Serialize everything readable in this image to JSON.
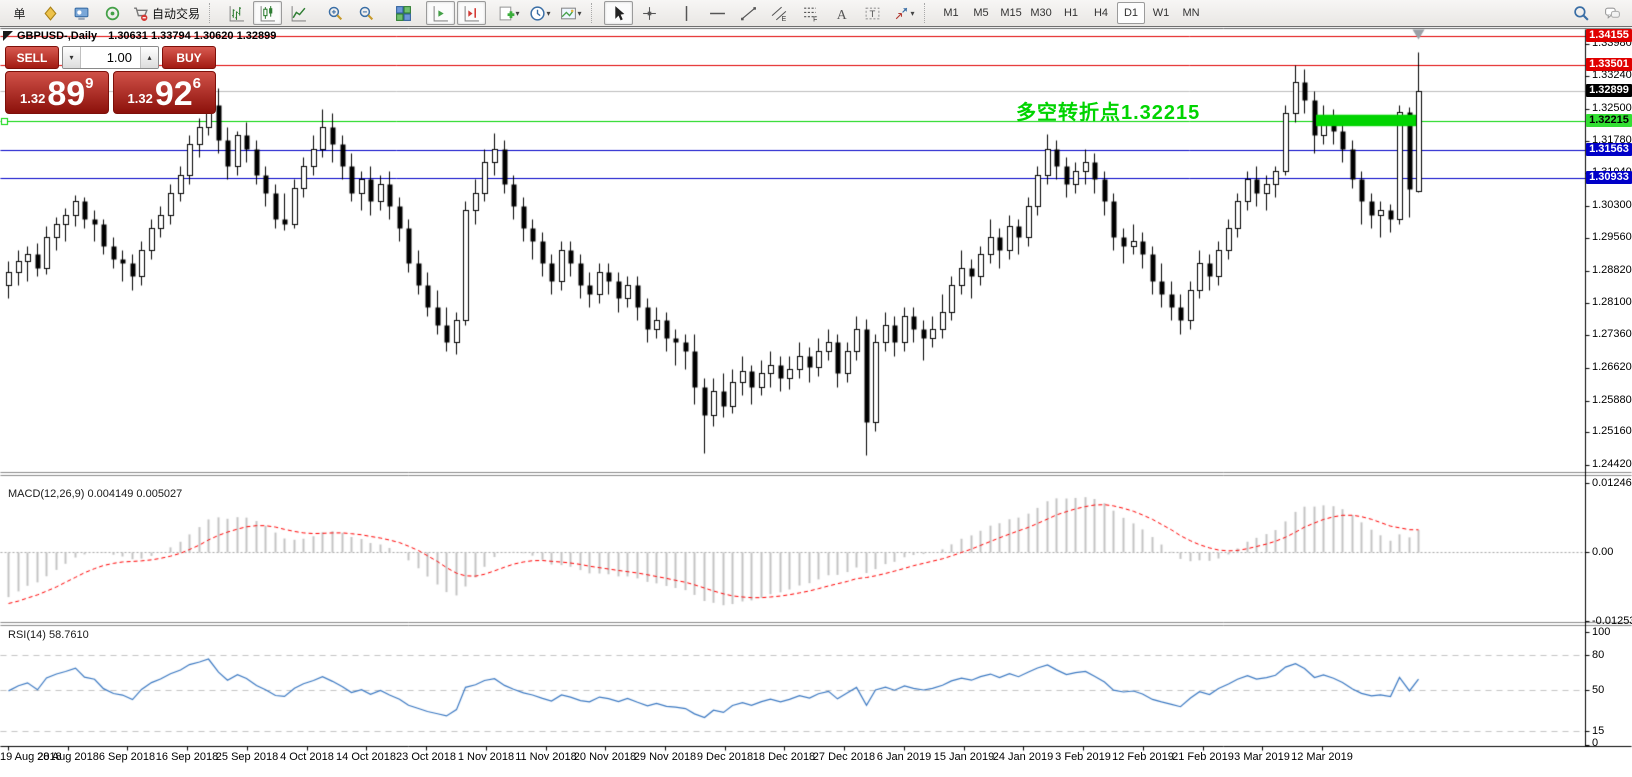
{
  "toolbar": {
    "buttons_left": [
      {
        "name": "new-order",
        "type": "text",
        "glyph": "单"
      },
      {
        "name": "market-watch",
        "type": "icon"
      },
      {
        "name": "metaeditor",
        "type": "icon"
      },
      {
        "name": "signals",
        "type": "icon"
      },
      {
        "name": "autotrading",
        "type": "icon",
        "label": "自动交易"
      },
      {
        "type": "sep"
      },
      {
        "name": "chart-bars",
        "type": "icon"
      },
      {
        "name": "chart-candles",
        "type": "icon",
        "active": true
      },
      {
        "name": "chart-line",
        "type": "icon"
      },
      {
        "type": "gap"
      },
      {
        "name": "zoom-in",
        "type": "icon"
      },
      {
        "name": "zoom-out",
        "type": "icon"
      },
      {
        "type": "gap"
      },
      {
        "name": "tile-windows",
        "type": "icon"
      },
      {
        "type": "gap"
      },
      {
        "name": "auto-scroll",
        "type": "icon",
        "active": true
      },
      {
        "name": "chart-shift",
        "type": "icon",
        "active": true
      },
      {
        "type": "gap"
      },
      {
        "name": "indicators",
        "type": "icon",
        "caret": true
      },
      {
        "name": "periods",
        "type": "icon",
        "caret": true
      },
      {
        "name": "templates",
        "type": "icon",
        "caret": true
      },
      {
        "type": "sep"
      },
      {
        "name": "cursor",
        "type": "icon",
        "active": true
      },
      {
        "name": "crosshair",
        "type": "icon"
      },
      {
        "type": "gap"
      },
      {
        "name": "vline",
        "type": "icon"
      },
      {
        "name": "hline",
        "type": "icon"
      },
      {
        "name": "trendline",
        "type": "icon"
      },
      {
        "name": "channel",
        "type": "icon"
      },
      {
        "name": "fibonacci",
        "type": "icon"
      },
      {
        "name": "text",
        "type": "icon"
      },
      {
        "name": "label",
        "type": "icon"
      },
      {
        "name": "arrows",
        "type": "icon",
        "caret": true
      },
      {
        "type": "sep"
      }
    ],
    "timeframes": [
      {
        "label": "M1"
      },
      {
        "label": "M5"
      },
      {
        "label": "M15"
      },
      {
        "label": "M30"
      },
      {
        "label": "H1"
      },
      {
        "label": "H4"
      },
      {
        "label": "D1",
        "active": true
      },
      {
        "label": "W1"
      },
      {
        "label": "MN"
      }
    ],
    "buttons_right": [
      {
        "name": "search",
        "type": "icon"
      },
      {
        "name": "chat",
        "type": "icon"
      }
    ]
  },
  "chart_header": {
    "title": "GBPUSD-,Daily",
    "ohlc": "1.30631 1.33794 1.30620 1.32899"
  },
  "one_click": {
    "sell_label": "SELL",
    "buy_label": "BUY",
    "volume": "1.00",
    "sell": {
      "prefix": "1.32",
      "big": "89",
      "sup": "9"
    },
    "buy": {
      "prefix": "1.32",
      "big": "92",
      "sup": "6"
    }
  },
  "annotation": {
    "text": "多空转折点1.32215",
    "color": "#00d400"
  },
  "indicators": {
    "macd_label": "MACD(12,26,9) 0.004149 0.005027",
    "rsi_label": "RSI(14) 58.7610"
  },
  "chart_data": {
    "type": "candlestick",
    "symbol": "GBPUSD-",
    "period": "Daily",
    "title": "GBPUSD-,Daily 1.30631 1.33794 1.30620 1.32899",
    "colors": {
      "bull": "#ffffff",
      "bear": "#000000",
      "outline": "#000000",
      "red_level": "#e00000",
      "green_level": "#00d400",
      "blue_level": "#0000c8",
      "current_price_line": "#bdbdbd",
      "macd_hist": "#c4c4c4",
      "macd_signal": "#ff0000",
      "rsi_line": "#3a78c2"
    },
    "y_axis": {
      "min": 1.2442,
      "max": 1.34155,
      "ticks": [
        1.3398,
        1.3324,
        1.325,
        1.3178,
        1.3104,
        1.303,
        1.2956,
        1.2882,
        1.281,
        1.2736,
        1.2662,
        1.2588,
        1.2516,
        1.2442
      ]
    },
    "levels": [
      {
        "price": 1.34155,
        "label": "1.34155",
        "line_color": "#e00000",
        "badge_bg": "#e00000",
        "badge_fg": "#ffffff"
      },
      {
        "price": 1.33501,
        "label": "1.33501",
        "line_color": "#e00000",
        "badge_bg": "#e00000",
        "badge_fg": "#ffffff"
      },
      {
        "price": 1.32899,
        "label": "1.32899",
        "line_color": "#bdbdbd",
        "badge_bg": "#000000",
        "badge_fg": "#ffffff",
        "is_current": true
      },
      {
        "price": 1.32215,
        "label": "1.32215",
        "line_color": "#00d400",
        "badge_bg": "#33df33",
        "badge_fg": "#000000",
        "has_left_handle": true
      },
      {
        "price": 1.31563,
        "label": "1.31563",
        "line_color": "#0000c8",
        "badge_bg": "#0000c8",
        "badge_fg": "#ffffff"
      },
      {
        "price": 1.30933,
        "label": "1.30933",
        "line_color": "#0000c8",
        "badge_bg": "#0000c8",
        "badge_fg": "#ffffff"
      }
    ],
    "rectangle": {
      "x1_index": 137.2,
      "x2_index": 147.7,
      "top": 1.3238,
      "bottom": 1.3212,
      "color": "#00d400"
    },
    "marker": {
      "index": 148,
      "type": "down-triangle",
      "color": "#9aa0a6"
    },
    "date_labels": [
      "19 Aug 2018",
      "28 Aug 2018",
      "6 Sep 2018",
      "16 Sep 2018",
      "25 Sep 2018",
      "4 Oct 2018",
      "14 Oct 2018",
      "23 Oct 2018",
      "1 Nov 2018",
      "11 Nov 2018",
      "20 Nov 2018",
      "29 Nov 2018",
      "9 Dec 2018",
      "18 Dec 2018",
      "27 Dec 2018",
      "6 Jan 2019",
      "15 Jan 2019",
      "24 Jan 2019",
      "3 Feb 2019",
      "12 Feb 2019",
      "21 Feb 2019",
      "3 Mar 2019",
      "12 Mar 2019"
    ],
    "macd": {
      "params": "12,26,9",
      "values_text": [
        "0.004149",
        "0.005027"
      ],
      "ticks": [
        {
          "v": 0.012465,
          "label": "0.012465"
        },
        {
          "v": 0,
          "label": "0.00"
        },
        {
          "v": -0.012532,
          "label": "-0.012532"
        }
      ]
    },
    "rsi": {
      "params": "14",
      "value_text": "58.7610",
      "ticks": [
        {
          "v": 100,
          "label": "100"
        },
        {
          "v": 80,
          "label": "80"
        },
        {
          "v": 50,
          "label": "50"
        },
        {
          "v": 15,
          "label": "15"
        },
        {
          "v": 0,
          "label": "0"
        }
      ],
      "dashed_levels": [
        80,
        50,
        15
      ]
    },
    "candles": [
      [
        1.285,
        1.2905,
        1.282,
        1.288
      ],
      [
        1.288,
        1.293,
        1.285,
        1.2905
      ],
      [
        1.2905,
        1.294,
        1.286,
        1.292
      ],
      [
        1.292,
        1.2945,
        1.287,
        1.289
      ],
      [
        1.289,
        1.2985,
        1.2875,
        1.296
      ],
      [
        1.296,
        1.3005,
        1.293,
        1.299
      ],
      [
        1.299,
        1.3025,
        1.295,
        1.301
      ],
      [
        1.301,
        1.3055,
        1.2985,
        1.304
      ],
      [
        1.304,
        1.305,
        1.298,
        1.3
      ],
      [
        1.3,
        1.302,
        1.295,
        1.299
      ],
      [
        1.299,
        1.3,
        1.292,
        1.294
      ],
      [
        1.294,
        1.296,
        1.289,
        1.291
      ],
      [
        1.291,
        1.293,
        1.286,
        1.29
      ],
      [
        1.29,
        1.292,
        1.284,
        1.287
      ],
      [
        1.287,
        1.295,
        1.285,
        1.293
      ],
      [
        1.293,
        1.3,
        1.291,
        1.298
      ],
      [
        1.298,
        1.303,
        1.296,
        1.301
      ],
      [
        1.301,
        1.308,
        1.299,
        1.306
      ],
      [
        1.306,
        1.312,
        1.304,
        1.31
      ],
      [
        1.31,
        1.319,
        1.308,
        1.317
      ],
      [
        1.317,
        1.323,
        1.314,
        1.321
      ],
      [
        1.321,
        1.33,
        1.319,
        1.326
      ],
      [
        1.326,
        1.3298,
        1.315,
        1.318
      ],
      [
        1.318,
        1.321,
        1.309,
        1.312
      ],
      [
        1.312,
        1.32,
        1.31,
        1.319
      ],
      [
        1.319,
        1.322,
        1.313,
        1.316
      ],
      [
        1.316,
        1.318,
        1.308,
        1.31
      ],
      [
        1.31,
        1.312,
        1.303,
        1.306
      ],
      [
        1.306,
        1.308,
        1.298,
        1.3
      ],
      [
        1.3,
        1.306,
        1.2975,
        1.299
      ],
      [
        1.299,
        1.309,
        1.298,
        1.307
      ],
      [
        1.307,
        1.314,
        1.305,
        1.312
      ],
      [
        1.312,
        1.319,
        1.31,
        1.316
      ],
      [
        1.316,
        1.325,
        1.314,
        1.321
      ],
      [
        1.321,
        1.324,
        1.313,
        1.317
      ],
      [
        1.317,
        1.319,
        1.309,
        1.312
      ],
      [
        1.312,
        1.315,
        1.304,
        1.306
      ],
      [
        1.306,
        1.311,
        1.302,
        1.309
      ],
      [
        1.309,
        1.312,
        1.301,
        1.304
      ],
      [
        1.304,
        1.31,
        1.302,
        1.308
      ],
      [
        1.308,
        1.311,
        1.3,
        1.303
      ],
      [
        1.303,
        1.305,
        1.295,
        1.298
      ],
      [
        1.298,
        1.3,
        1.288,
        1.29
      ],
      [
        1.29,
        1.293,
        1.283,
        1.285
      ],
      [
        1.285,
        1.288,
        1.278,
        1.28
      ],
      [
        1.28,
        1.284,
        1.274,
        1.276
      ],
      [
        1.276,
        1.28,
        1.27,
        1.272
      ],
      [
        1.272,
        1.279,
        1.2695,
        1.277
      ],
      [
        1.277,
        1.304,
        1.276,
        1.302
      ],
      [
        1.302,
        1.309,
        1.299,
        1.306
      ],
      [
        1.306,
        1.316,
        1.304,
        1.313
      ],
      [
        1.313,
        1.3195,
        1.31,
        1.316
      ],
      [
        1.316,
        1.318,
        1.306,
        1.308
      ],
      [
        1.308,
        1.31,
        1.3,
        1.303
      ],
      [
        1.303,
        1.305,
        1.295,
        1.298
      ],
      [
        1.298,
        1.3,
        1.291,
        1.295
      ],
      [
        1.295,
        1.297,
        1.287,
        1.29
      ],
      [
        1.29,
        1.292,
        1.283,
        1.286
      ],
      [
        1.286,
        1.295,
        1.284,
        1.293
      ],
      [
        1.293,
        1.295,
        1.287,
        1.29
      ],
      [
        1.29,
        1.292,
        1.282,
        1.285
      ],
      [
        1.285,
        1.288,
        1.28,
        1.283
      ],
      [
        1.283,
        1.29,
        1.281,
        1.288
      ],
      [
        1.288,
        1.29,
        1.283,
        1.286
      ],
      [
        1.286,
        1.288,
        1.279,
        1.282
      ],
      [
        1.282,
        1.287,
        1.28,
        1.285
      ],
      [
        1.285,
        1.287,
        1.277,
        1.28
      ],
      [
        1.28,
        1.282,
        1.272,
        1.275
      ],
      [
        1.275,
        1.28,
        1.273,
        1.277
      ],
      [
        1.277,
        1.279,
        1.27,
        1.273
      ],
      [
        1.273,
        1.275,
        1.267,
        1.272
      ],
      [
        1.272,
        1.274,
        1.266,
        1.27
      ],
      [
        1.27,
        1.274,
        1.258,
        1.262
      ],
      [
        1.262,
        1.264,
        1.247,
        1.2555
      ],
      [
        1.2555,
        1.264,
        1.253,
        1.261
      ],
      [
        1.261,
        1.265,
        1.255,
        1.2575
      ],
      [
        1.2575,
        1.266,
        1.256,
        1.263
      ],
      [
        1.263,
        1.269,
        1.26,
        1.2655
      ],
      [
        1.2655,
        1.267,
        1.258,
        1.262
      ],
      [
        1.262,
        1.268,
        1.26,
        1.265
      ],
      [
        1.265,
        1.27,
        1.262,
        1.267
      ],
      [
        1.267,
        1.269,
        1.261,
        1.264
      ],
      [
        1.264,
        1.269,
        1.2615,
        1.266
      ],
      [
        1.266,
        1.272,
        1.264,
        1.269
      ],
      [
        1.269,
        1.271,
        1.263,
        1.2665
      ],
      [
        1.2665,
        1.273,
        1.2645,
        1.27
      ],
      [
        1.27,
        1.275,
        1.268,
        1.272
      ],
      [
        1.272,
        1.274,
        1.262,
        1.265
      ],
      [
        1.265,
        1.272,
        1.263,
        1.27
      ],
      [
        1.27,
        1.278,
        1.268,
        1.275
      ],
      [
        1.275,
        1.2774,
        1.2465,
        1.254
      ],
      [
        1.254,
        1.274,
        1.252,
        1.272
      ],
      [
        1.272,
        1.279,
        1.27,
        1.276
      ],
      [
        1.276,
        1.278,
        1.269,
        1.272
      ],
      [
        1.272,
        1.28,
        1.27,
        1.278
      ],
      [
        1.278,
        1.28,
        1.272,
        1.275
      ],
      [
        1.275,
        1.277,
        1.268,
        1.273
      ],
      [
        1.273,
        1.278,
        1.271,
        1.275
      ],
      [
        1.275,
        1.283,
        1.273,
        1.279
      ],
      [
        1.279,
        1.287,
        1.277,
        1.285
      ],
      [
        1.285,
        1.293,
        1.283,
        1.289
      ],
      [
        1.289,
        1.291,
        1.282,
        1.287
      ],
      [
        1.287,
        1.294,
        1.285,
        1.292
      ],
      [
        1.292,
        1.3,
        1.29,
        1.296
      ],
      [
        1.296,
        1.298,
        1.289,
        1.293
      ],
      [
        1.293,
        1.301,
        1.291,
        1.2985
      ],
      [
        1.2985,
        1.3,
        1.292,
        1.296
      ],
      [
        1.296,
        1.305,
        1.294,
        1.303
      ],
      [
        1.303,
        1.312,
        1.301,
        1.31
      ],
      [
        1.31,
        1.3193,
        1.308,
        1.316
      ],
      [
        1.316,
        1.318,
        1.309,
        1.312
      ],
      [
        1.312,
        1.314,
        1.305,
        1.308
      ],
      [
        1.308,
        1.313,
        1.306,
        1.311
      ],
      [
        1.311,
        1.316,
        1.308,
        1.313
      ],
      [
        1.313,
        1.315,
        1.306,
        1.309
      ],
      [
        1.309,
        1.311,
        1.301,
        1.304
      ],
      [
        1.304,
        1.306,
        1.293,
        1.296
      ],
      [
        1.296,
        1.298,
        1.29,
        1.294
      ],
      [
        1.294,
        1.299,
        1.292,
        1.295
      ],
      [
        1.295,
        1.297,
        1.289,
        1.292
      ],
      [
        1.292,
        1.294,
        1.283,
        1.286
      ],
      [
        1.286,
        1.29,
        1.28,
        1.283
      ],
      [
        1.283,
        1.286,
        1.277,
        1.28
      ],
      [
        1.28,
        1.283,
        1.274,
        1.277
      ],
      [
        1.277,
        1.286,
        1.275,
        1.284
      ],
      [
        1.284,
        1.293,
        1.282,
        1.29
      ],
      [
        1.29,
        1.292,
        1.284,
        1.287
      ],
      [
        1.287,
        1.295,
        1.285,
        1.293
      ],
      [
        1.293,
        1.3,
        1.291,
        1.298
      ],
      [
        1.298,
        1.306,
        1.296,
        1.304
      ],
      [
        1.304,
        1.311,
        1.302,
        1.309
      ],
      [
        1.309,
        1.312,
        1.303,
        1.306
      ],
      [
        1.306,
        1.31,
        1.302,
        1.308
      ],
      [
        1.308,
        1.312,
        1.305,
        1.311
      ],
      [
        1.311,
        1.326,
        1.31,
        1.324
      ],
      [
        1.324,
        1.335,
        1.322,
        1.331
      ],
      [
        1.331,
        1.334,
        1.324,
        1.327
      ],
      [
        1.327,
        1.329,
        1.315,
        1.319
      ],
      [
        1.319,
        1.326,
        1.317,
        1.323
      ],
      [
        1.323,
        1.325,
        1.317,
        1.32
      ],
      [
        1.32,
        1.322,
        1.313,
        1.316
      ],
      [
        1.316,
        1.318,
        1.307,
        1.309
      ],
      [
        1.309,
        1.311,
        1.299,
        1.304
      ],
      [
        1.304,
        1.306,
        1.298,
        1.301
      ],
      [
        1.301,
        1.304,
        1.296,
        1.302
      ],
      [
        1.302,
        1.3035,
        1.297,
        1.3
      ],
      [
        1.3,
        1.326,
        1.299,
        1.3244
      ],
      [
        1.3244,
        1.3255,
        1.3005,
        1.3068
      ],
      [
        1.30631,
        1.33794,
        1.3062,
        1.32899
      ]
    ]
  }
}
